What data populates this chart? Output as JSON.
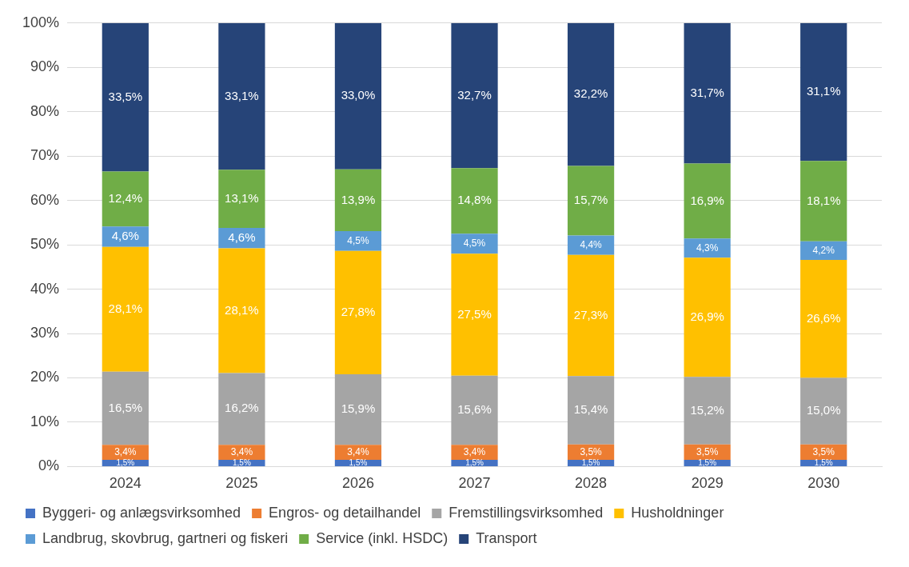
{
  "chart_data": {
    "type": "bar",
    "stacked": true,
    "categories": [
      "2024",
      "2025",
      "2026",
      "2027",
      "2028",
      "2029",
      "2030"
    ],
    "ylim": [
      0,
      100
    ],
    "yticks": [
      {
        "value": 0,
        "label": "0%"
      },
      {
        "value": 10,
        "label": "10%"
      },
      {
        "value": 20,
        "label": "20%"
      },
      {
        "value": 30,
        "label": "30%"
      },
      {
        "value": 40,
        "label": "40%"
      },
      {
        "value": 50,
        "label": "50%"
      },
      {
        "value": 60,
        "label": "60%"
      },
      {
        "value": 70,
        "label": "70%"
      },
      {
        "value": 80,
        "label": "80%"
      },
      {
        "value": 90,
        "label": "90%"
      },
      {
        "value": 100,
        "label": "100%"
      }
    ],
    "grid": "y",
    "legend": "bottom",
    "series": [
      {
        "name": "Byggeri- og anlægsvirksomhed",
        "color": "#4472c4",
        "values": [
          1.5,
          1.5,
          1.5,
          1.5,
          1.5,
          1.5,
          1.5
        ],
        "value_labels": [
          "1,5%",
          "1,5%",
          "1,5%",
          "1,5%",
          "1,5%",
          "1,5%",
          "1,5%"
        ]
      },
      {
        "name": "Engros- og detailhandel",
        "color": "#ed7d31",
        "values": [
          3.4,
          3.4,
          3.4,
          3.4,
          3.5,
          3.5,
          3.5
        ],
        "value_labels": [
          "3,4%",
          "3,4%",
          "3,4%",
          "3,4%",
          "3,5%",
          "3,5%",
          "3,5%"
        ]
      },
      {
        "name": "Fremstillingsvirksomhed",
        "color": "#a5a5a5",
        "values": [
          16.5,
          16.2,
          15.9,
          15.6,
          15.4,
          15.2,
          15.0
        ],
        "value_labels": [
          "16,5%",
          "16,2%",
          "15,9%",
          "15,6%",
          "15,4%",
          "15,2%",
          "15,0%"
        ]
      },
      {
        "name": "Husholdninger",
        "color": "#ffc000",
        "values": [
          28.1,
          28.1,
          27.8,
          27.5,
          27.3,
          26.9,
          26.6
        ],
        "value_labels": [
          "28,1%",
          "28,1%",
          "27,8%",
          "27,5%",
          "27,3%",
          "26,9%",
          "26,6%"
        ]
      },
      {
        "name": "Landbrug, skovbrug, gartneri og fiskeri",
        "color": "#5b9bd5",
        "values": [
          4.6,
          4.6,
          4.5,
          4.5,
          4.4,
          4.3,
          4.2
        ],
        "value_labels": [
          "4,6%",
          "4,6%",
          "4,5%",
          "4,5%",
          "4,4%",
          "4,3%",
          "4,2%"
        ]
      },
      {
        "name": "Service (inkl. HSDC)",
        "color": "#70ad47",
        "values": [
          12.4,
          13.1,
          13.9,
          14.8,
          15.7,
          16.9,
          18.1
        ],
        "value_labels": [
          "12,4%",
          "13,1%",
          "13,9%",
          "14,8%",
          "15,7%",
          "16,9%",
          "18,1%"
        ]
      },
      {
        "name": "Transport",
        "color": "#264478",
        "values": [
          33.5,
          33.1,
          33.0,
          32.7,
          32.2,
          31.7,
          31.1
        ],
        "value_labels": [
          "33,5%",
          "33,1%",
          "33,0%",
          "32,7%",
          "32,2%",
          "31,7%",
          "31,1%"
        ]
      }
    ]
  }
}
